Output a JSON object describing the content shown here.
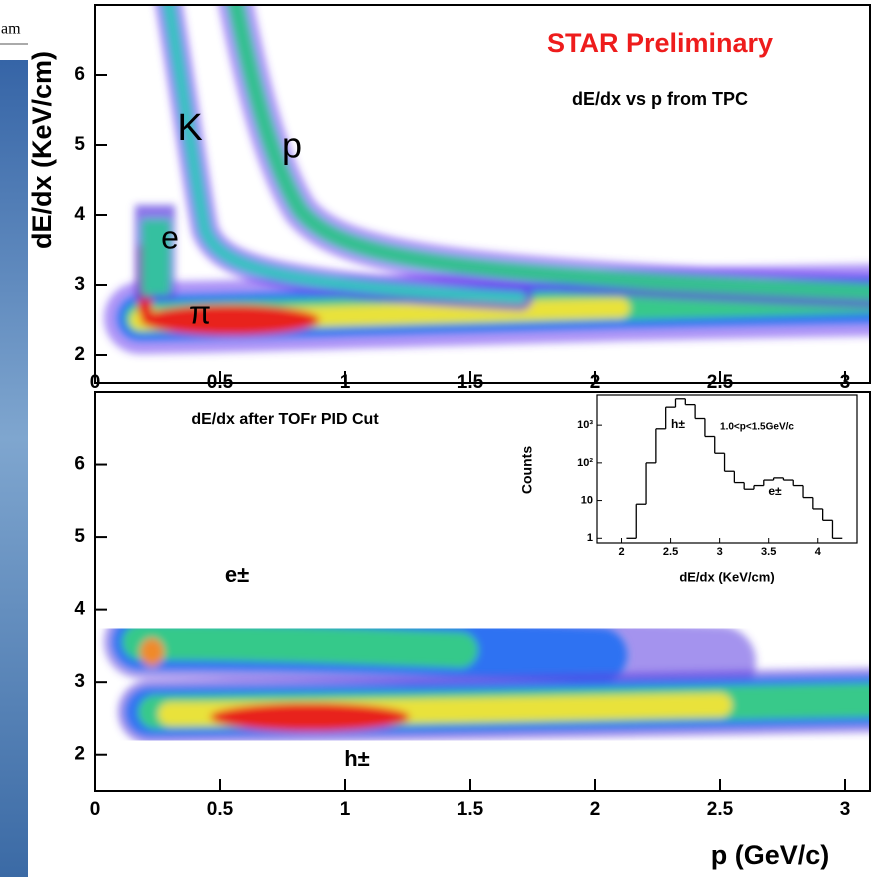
{
  "fragment_text": "am",
  "chart_data": [
    {
      "type": "heatmap",
      "title": "STAR Preliminary",
      "subtitle": "dE/dx vs p from TPC",
      "ylabel": "dE/dx (KeV/cm)",
      "annotations": [
        "K",
        "p",
        "e",
        "π"
      ],
      "xlim": [
        0,
        3.1
      ],
      "ylim": [
        1.6,
        7.0
      ],
      "xticks": [
        0,
        0.5,
        1,
        1.5,
        2,
        2.5,
        3
      ],
      "yticks": [
        2,
        3,
        4,
        5,
        6
      ]
    },
    {
      "type": "heatmap",
      "title": "dE/dx after TOFr PID Cut",
      "xlabel": "p (GeV/c)",
      "annotations": [
        "e±",
        "h±"
      ],
      "xlim": [
        0,
        3.1
      ],
      "ylim": [
        1.5,
        7.0
      ],
      "xticks": [
        0,
        0.5,
        1,
        1.5,
        2,
        2.5,
        3
      ],
      "yticks": [
        2,
        3,
        4,
        5,
        6
      ]
    },
    {
      "type": "histogram",
      "xlabel": "dE/dx (KeV/cm)",
      "ylabel": "Counts",
      "color": "#000000",
      "log_y": true,
      "annotations": [
        "h±",
        "1.0<p<1.5GeV/c",
        "e±"
      ],
      "bins": [
        2.05,
        2.15,
        2.25,
        2.35,
        2.45,
        2.55,
        2.65,
        2.75,
        2.85,
        2.95,
        3.05,
        3.15,
        3.25,
        3.35,
        3.45,
        3.55,
        3.65,
        3.75,
        3.85,
        3.95,
        4.05,
        4.15,
        4.25
      ],
      "values": [
        1,
        8,
        100,
        800,
        3000,
        5000,
        3500,
        1500,
        500,
        180,
        60,
        30,
        20,
        25,
        35,
        40,
        35,
        25,
        12,
        6,
        3,
        1
      ],
      "xlim": [
        1.75,
        4.4
      ],
      "ylim": [
        0.75,
        6300
      ],
      "xticks": [
        2,
        2.5,
        3,
        3.5,
        4
      ],
      "yticks": [
        1,
        10,
        {
          "value": 100,
          "label": "10²"
        },
        {
          "value": 1000,
          "label": "10³"
        }
      ]
    }
  ]
}
